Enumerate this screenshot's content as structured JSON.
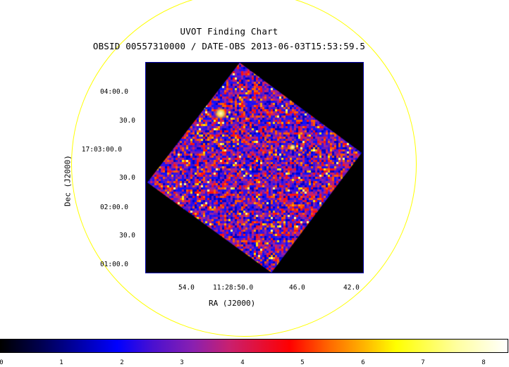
{
  "chart": {
    "title": "UVOT Finding Chart",
    "subtitle": "OBSID 00557310000 / DATE-OBS 2013-06-03T15:53:59.5",
    "xlabel": "RA (J2000)",
    "ylabel": "Dec (J2000)",
    "y_ticks": [
      "04:00.0",
      "30.0",
      "17:03:00.0",
      "30.0",
      "02:00.0",
      "30.0",
      "01:00.0"
    ],
    "x_ticks": [
      "54.0",
      "11:28:50.0",
      "46.0",
      "42.0"
    ],
    "colorbar_ticks": [
      "0",
      "1",
      "2",
      "3",
      "4",
      "5",
      "6",
      "7",
      "8"
    ],
    "colors": {
      "circle": "#ffff00",
      "frame": "#0000aa",
      "background": "#000000"
    }
  }
}
